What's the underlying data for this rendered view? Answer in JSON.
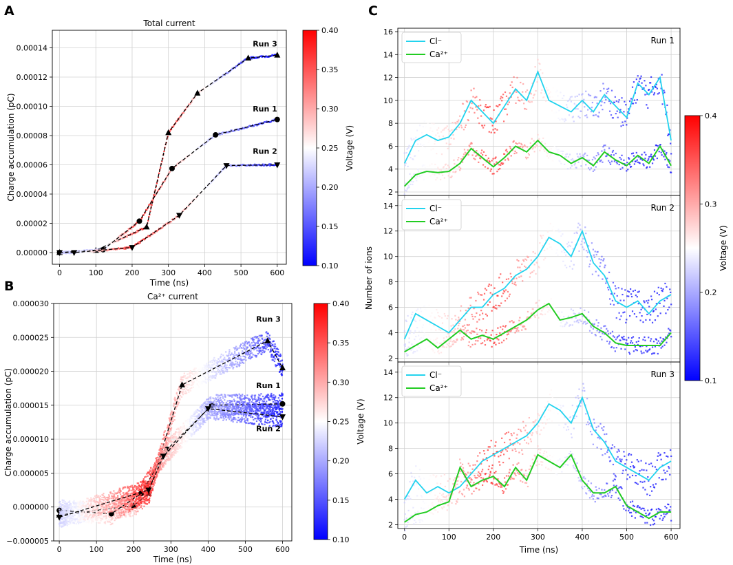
{
  "panels": {
    "A": "A",
    "B": "B",
    "C": "C"
  },
  "colors": {
    "cl_line": "#22d3ee",
    "ca_line": "#22cc22",
    "fit": "#000000",
    "cmap": [
      "#0000ff",
      "#ffffff",
      "#ff0000"
    ]
  },
  "chart_data": [
    {
      "id": "A",
      "type": "line",
      "title": "Total current",
      "xlabel": "Time (ns)",
      "ylabel": "Charge accumulation (pC)",
      "xlim": [
        -20,
        625
      ],
      "ylim": [
        -8e-06,
        0.000152
      ],
      "xticks": [
        0,
        100,
        200,
        300,
        400,
        500,
        600
      ],
      "xtick_labels": [
        "0",
        "100",
        "200",
        "300",
        "400",
        "500",
        "600"
      ],
      "yticks": [
        0,
        2e-05,
        4e-05,
        6e-05,
        8e-05,
        0.0001,
        0.00012,
        0.00014
      ],
      "ytick_labels": [
        "0.00000",
        "0.00002",
        "0.00004",
        "0.00006",
        "0.00008",
        "0.00010",
        "0.00012",
        "0.00014"
      ],
      "colorbar": {
        "label": "Voltage (V)",
        "min": 0.1,
        "max": 0.4,
        "ticks": [
          "0.10",
          "0.15",
          "0.20",
          "0.25",
          "0.30",
          "0.35",
          "0.40"
        ]
      },
      "series": [
        {
          "name": "Run 3",
          "label": "Run 3",
          "marker": "triangle-up",
          "label_at": [
            600,
            0.000141
          ],
          "x": [
            0,
            100,
            240,
            300,
            380,
            520,
            600
          ],
          "y": [
            0,
            1.5e-06,
            1.75e-05,
            8.2e-05,
            0.000109,
            0.000133,
            0.000135
          ],
          "voltage": [
            0.22,
            0.22,
            0.38,
            0.38,
            0.28,
            0.12,
            0.11
          ]
        },
        {
          "name": "Run 1",
          "label": "Run 1",
          "marker": "circle",
          "label_at": [
            600,
            9.65e-05
          ],
          "x": [
            0,
            120,
            220,
            310,
            430,
            600
          ],
          "y": [
            0,
            2e-06,
            2.15e-05,
            5.75e-05,
            8.05e-05,
            9.1e-05
          ],
          "voltage": [
            0.22,
            0.22,
            0.38,
            0.3,
            0.2,
            0.12
          ]
        },
        {
          "name": "Run 2",
          "label": "Run 2",
          "marker": "triangle-down",
          "label_at": [
            600,
            6.75e-05
          ],
          "x": [
            0,
            40,
            200,
            330,
            460,
            600
          ],
          "y": [
            0,
            0,
            3.5e-06,
            2.55e-05,
            5.95e-05,
            6e-05
          ],
          "voltage": [
            0.22,
            0.22,
            0.38,
            0.3,
            0.2,
            0.11
          ]
        }
      ]
    },
    {
      "id": "B",
      "type": "scatter",
      "title": "Ca²⁺ current",
      "xlabel": "Time (ns)",
      "ylabel": "Charge accumulation (pC)",
      "xlim": [
        -15,
        625
      ],
      "ylim": [
        -5e-06,
        3e-05
      ],
      "xticks": [
        0,
        100,
        200,
        300,
        400,
        500,
        600
      ],
      "xtick_labels": [
        "0",
        "100",
        "200",
        "300",
        "400",
        "500",
        "600"
      ],
      "yticks": [
        -5e-06,
        0,
        5e-06,
        1e-05,
        1.5e-05,
        2e-05,
        2.5e-05,
        3e-05
      ],
      "ytick_labels": [
        "−0.000005",
        "0.000000",
        "0.000005",
        "0.000010",
        "0.000015",
        "0.000020",
        "0.000025",
        "0.000030"
      ],
      "colorbar": {
        "label": "Voltage (V)",
        "min": 0.1,
        "max": 0.4,
        "ticks": [
          "0.10",
          "0.15",
          "0.20",
          "0.25",
          "0.30",
          "0.35",
          "0.40"
        ]
      },
      "series": [
        {
          "name": "Run 3",
          "label": "Run 3",
          "marker": "triangle-up",
          "label_at": [
            595,
            2.73e-05
          ],
          "x": [
            0,
            200,
            240,
            330,
            560,
            600
          ],
          "y": [
            -1.2e-06,
            2e-07,
            2e-06,
            1.8e-05,
            2.45e-05,
            2.05e-05
          ],
          "voltage": [
            0.22,
            0.28,
            0.38,
            0.28,
            0.14,
            0.11
          ]
        },
        {
          "name": "Run 1",
          "label": "Run 1",
          "marker": "circle",
          "label_at": [
            595,
            1.75e-05
          ],
          "x": [
            0,
            140,
            220,
            290,
            410,
            600
          ],
          "y": [
            -5e-07,
            -1e-06,
            2e-06,
            8.5e-06,
            1.5e-05,
            1.52e-05
          ],
          "voltage": [
            0.22,
            0.28,
            0.38,
            0.3,
            0.2,
            0.12
          ]
        },
        {
          "name": "Run 2",
          "label": "Run 2",
          "marker": "triangle-down",
          "label_at": [
            595,
            1.12e-05
          ],
          "x": [
            0,
            240,
            280,
            400,
            600
          ],
          "y": [
            -1.5e-06,
            2.5e-06,
            7.5e-06,
            1.45e-05,
            1.33e-05
          ],
          "voltage": [
            0.22,
            0.38,
            0.3,
            0.2,
            0.11
          ]
        }
      ]
    },
    {
      "id": "C",
      "type": "line",
      "xlabel": "Time (ns)",
      "ylabel": "Number of ions",
      "xlim": [
        -15,
        620
      ],
      "xticks": [
        0,
        100,
        200,
        300,
        400,
        500,
        600
      ],
      "xtick_labels": [
        "0",
        "100",
        "200",
        "300",
        "400",
        "500",
        "600"
      ],
      "colorbar": {
        "label": "Voltage (V)",
        "min": 0.1,
        "max": 0.4,
        "ticks": [
          "0.1",
          "0.2",
          "0.3",
          "0.4"
        ]
      },
      "legend": [
        "Cl⁻",
        "Ca²⁺"
      ],
      "voltage_schedule": {
        "t": [
          0,
          100,
          200,
          300,
          400,
          500,
          600
        ],
        "v": [
          0.22,
          0.28,
          0.38,
          0.28,
          0.2,
          0.11,
          0.11
        ]
      },
      "subplots": [
        {
          "name": "Run 1",
          "label": "Run 1",
          "ylim": [
            1.7,
            16.3
          ],
          "yticks": [
            2,
            4,
            6,
            8,
            10,
            12,
            14,
            16
          ],
          "ytick_labels": [
            "2",
            "4",
            "6",
            "8",
            "10",
            "12",
            "14",
            "16"
          ],
          "cl": {
            "x": [
              0,
              25,
              50,
              75,
              100,
              125,
              150,
              175,
              200,
              225,
              250,
              275,
              300,
              325,
              350,
              375,
              400,
              425,
              450,
              475,
              500,
              525,
              550,
              575,
              600
            ],
            "y": [
              4.5,
              6.5,
              7.0,
              6.5,
              6.8,
              8.0,
              10.0,
              9.0,
              8.0,
              9.5,
              11.0,
              10.0,
              12.5,
              10.0,
              9.5,
              9.0,
              10.0,
              9.0,
              10.5,
              9.5,
              8.5,
              11.5,
              10.5,
              12.0,
              6.5
            ]
          },
          "ca": {
            "x": [
              0,
              25,
              50,
              75,
              100,
              125,
              150,
              175,
              200,
              225,
              250,
              275,
              300,
              325,
              350,
              375,
              400,
              425,
              450,
              475,
              500,
              525,
              550,
              575,
              600
            ],
            "y": [
              2.5,
              3.5,
              3.8,
              3.7,
              3.8,
              4.5,
              5.8,
              5.0,
              4.2,
              5.0,
              6.0,
              5.5,
              6.5,
              5.5,
              5.2,
              4.5,
              5.0,
              4.3,
              5.5,
              4.8,
              4.3,
              5.2,
              4.5,
              6.0,
              4.3
            ]
          }
        },
        {
          "name": "Run 2",
          "label": "Run 2",
          "ylim": [
            1.7,
            14.8
          ],
          "yticks": [
            2,
            4,
            6,
            8,
            10,
            12,
            14
          ],
          "ytick_labels": [
            "2",
            "4",
            "6",
            "8",
            "10",
            "12",
            "14"
          ],
          "cl": {
            "x": [
              0,
              25,
              50,
              75,
              100,
              125,
              150,
              175,
              200,
              225,
              250,
              275,
              300,
              325,
              350,
              375,
              400,
              425,
              450,
              475,
              500,
              525,
              550,
              575,
              600
            ],
            "y": [
              3.5,
              5.5,
              5.0,
              4.5,
              4.0,
              5.0,
              6.0,
              6.0,
              7.0,
              7.5,
              8.5,
              9.0,
              10.0,
              11.5,
              11.0,
              10.0,
              12.0,
              9.5,
              8.5,
              6.5,
              6.0,
              6.5,
              5.5,
              6.5,
              7.0
            ]
          },
          "ca": {
            "x": [
              0,
              25,
              50,
              75,
              100,
              125,
              150,
              175,
              200,
              225,
              250,
              275,
              300,
              325,
              350,
              375,
              400,
              425,
              450,
              475,
              500,
              525,
              550,
              575,
              600
            ],
            "y": [
              2.5,
              3.0,
              3.5,
              2.8,
              3.5,
              4.2,
              3.5,
              3.8,
              3.5,
              4.0,
              4.5,
              5.0,
              5.8,
              6.3,
              5.0,
              5.2,
              5.5,
              4.5,
              4.0,
              3.2,
              3.0,
              3.0,
              3.0,
              3.0,
              4.0
            ]
          }
        },
        {
          "name": "Run 3",
          "label": "Run 3",
          "ylim": [
            1.7,
            14.8
          ],
          "yticks": [
            2,
            4,
            6,
            8,
            10,
            12,
            14
          ],
          "ytick_labels": [
            "2",
            "4",
            "6",
            "8",
            "10",
            "12",
            "14"
          ],
          "cl": {
            "x": [
              0,
              25,
              50,
              75,
              100,
              125,
              150,
              175,
              200,
              225,
              250,
              275,
              300,
              325,
              350,
              375,
              400,
              425,
              450,
              475,
              500,
              525,
              550,
              575,
              600
            ],
            "y": [
              4.0,
              5.5,
              4.5,
              5.0,
              4.5,
              5.0,
              6.0,
              7.0,
              7.5,
              8.0,
              8.5,
              9.0,
              10.0,
              11.5,
              11.0,
              10.0,
              12.0,
              9.5,
              8.5,
              7.0,
              6.5,
              6.0,
              5.5,
              6.5,
              7.0
            ]
          },
          "ca": {
            "x": [
              0,
              25,
              50,
              75,
              100,
              125,
              150,
              175,
              200,
              225,
              250,
              275,
              300,
              325,
              350,
              375,
              400,
              425,
              450,
              475,
              500,
              525,
              550,
              575,
              600
            ],
            "y": [
              2.2,
              2.8,
              3.0,
              3.5,
              3.8,
              6.5,
              5.0,
              5.5,
              5.8,
              5.0,
              6.5,
              5.5,
              7.5,
              7.0,
              6.5,
              7.5,
              5.5,
              4.5,
              4.5,
              5.0,
              3.5,
              3.0,
              2.5,
              3.0,
              3.0
            ]
          }
        }
      ]
    }
  ]
}
